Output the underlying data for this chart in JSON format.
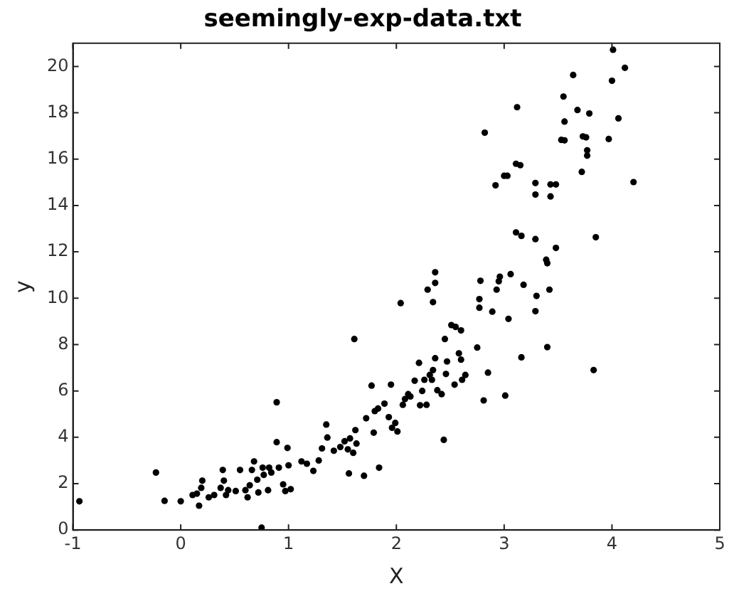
{
  "chart_data": {
    "type": "scatter",
    "title": "seemingly-exp-data.txt",
    "xlabel": "X",
    "ylabel": "y",
    "marker": "circle",
    "grid": false,
    "xlim": [
      -1,
      5
    ],
    "xticks": [
      -1,
      0,
      1,
      2,
      3,
      4,
      5
    ],
    "ylim": [
      0,
      21
    ],
    "yticks": [
      0,
      2,
      4,
      6,
      8,
      10,
      12,
      14,
      16,
      18,
      20
    ],
    "series": [
      {
        "color": "#000000",
        "x": [
          -0.94,
          -0.23,
          -0.15,
          0.0,
          0.11,
          0.15,
          0.17,
          0.19,
          0.2,
          0.26,
          0.31,
          0.37,
          0.39,
          0.4,
          0.42,
          0.44,
          0.51,
          0.55,
          0.6,
          0.62,
          0.64,
          0.66,
          0.68,
          0.71,
          0.72,
          0.75,
          0.76,
          0.77,
          0.81,
          0.82,
          0.84,
          0.89,
          0.89,
          0.91,
          0.95,
          0.97,
          0.99,
          1.0,
          1.02,
          1.12,
          1.17,
          1.23,
          1.28,
          1.31,
          1.35,
          1.36,
          1.42,
          1.48,
          1.52,
          1.55,
          1.56,
          1.57,
          1.6,
          1.61,
          1.62,
          1.63,
          1.7,
          1.72,
          1.77,
          1.79,
          1.8,
          1.83,
          1.84,
          1.95,
          1.89,
          1.93,
          1.96,
          2.01,
          1.99,
          2.04,
          2.06,
          2.08,
          2.11,
          2.13,
          2.17,
          2.21,
          2.22,
          2.24,
          2.26,
          2.28,
          2.29,
          2.31,
          2.33,
          2.34,
          2.34,
          2.36,
          2.36,
          2.36,
          2.38,
          2.42,
          2.44,
          2.45,
          2.46,
          2.47,
          2.51,
          2.54,
          2.55,
          2.58,
          2.6,
          2.6,
          2.61,
          2.64,
          2.75,
          2.78,
          2.77,
          2.77,
          2.81,
          2.85,
          2.89,
          2.93,
          2.95,
          2.96,
          3.01,
          3.04,
          3.06,
          3.11,
          3.16,
          3.16,
          3.18,
          3.29,
          3.3,
          3.29,
          3.4,
          3.39,
          3.4,
          3.42,
          3.83,
          4.01,
          4.12,
          3.64,
          4.0,
          3.55,
          3.12,
          3.68,
          3.79,
          3.56,
          4.06,
          2.82,
          3.53,
          3.56,
          3.73,
          3.76,
          3.97,
          3.77,
          3.77,
          3.72,
          3.11,
          3.15,
          3.0,
          3.03,
          2.92,
          3.29,
          3.29,
          3.43,
          3.48,
          3.43,
          4.2,
          3.85,
          3.48
        ],
        "values": [
          1.24,
          2.48,
          1.26,
          1.24,
          1.51,
          1.57,
          1.05,
          1.82,
          2.13,
          1.41,
          1.51,
          1.82,
          2.59,
          2.13,
          1.51,
          1.72,
          1.68,
          2.59,
          1.72,
          1.41,
          1.93,
          2.59,
          2.96,
          2.17,
          1.62,
          0.1,
          2.69,
          2.38,
          1.72,
          2.69,
          2.48,
          5.51,
          3.79,
          2.69,
          1.97,
          1.68,
          3.54,
          2.79,
          1.76,
          2.96,
          2.86,
          2.55,
          3.0,
          3.52,
          4.55,
          3.99,
          3.42,
          3.58,
          3.83,
          3.48,
          2.44,
          3.95,
          3.33,
          8.24,
          4.31,
          3.73,
          2.34,
          4.82,
          6.23,
          4.2,
          5.13,
          5.24,
          2.69,
          6.27,
          5.45,
          4.87,
          4.41,
          4.25,
          4.62,
          9.79,
          5.4,
          5.65,
          5.86,
          5.76,
          6.44,
          7.21,
          5.38,
          6.0,
          6.48,
          5.4,
          10.37,
          6.69,
          6.48,
          6.9,
          9.83,
          10.66,
          11.12,
          7.41,
          6.03,
          5.86,
          3.89,
          8.24,
          6.73,
          7.27,
          8.84,
          6.27,
          8.76,
          7.62,
          8.61,
          7.35,
          6.48,
          6.69,
          7.87,
          10.75,
          9.96,
          9.59,
          5.59,
          6.79,
          9.42,
          10.37,
          10.73,
          10.93,
          5.8,
          9.11,
          11.04,
          12.84,
          12.69,
          7.45,
          10.58,
          9.44,
          10.1,
          12.55,
          7.89,
          11.66,
          11.51,
          10.37,
          6.9,
          20.72,
          19.94,
          19.63,
          19.38,
          18.7,
          18.24,
          18.12,
          17.97,
          17.62,
          17.76,
          17.14,
          16.83,
          16.81,
          16.98,
          16.94,
          16.87,
          16.38,
          16.15,
          15.45,
          15.8,
          15.74,
          15.28,
          15.28,
          14.87,
          14.97,
          14.47,
          14.91,
          14.91,
          14.39,
          15.01,
          12.63,
          12.17
        ]
      }
    ]
  }
}
